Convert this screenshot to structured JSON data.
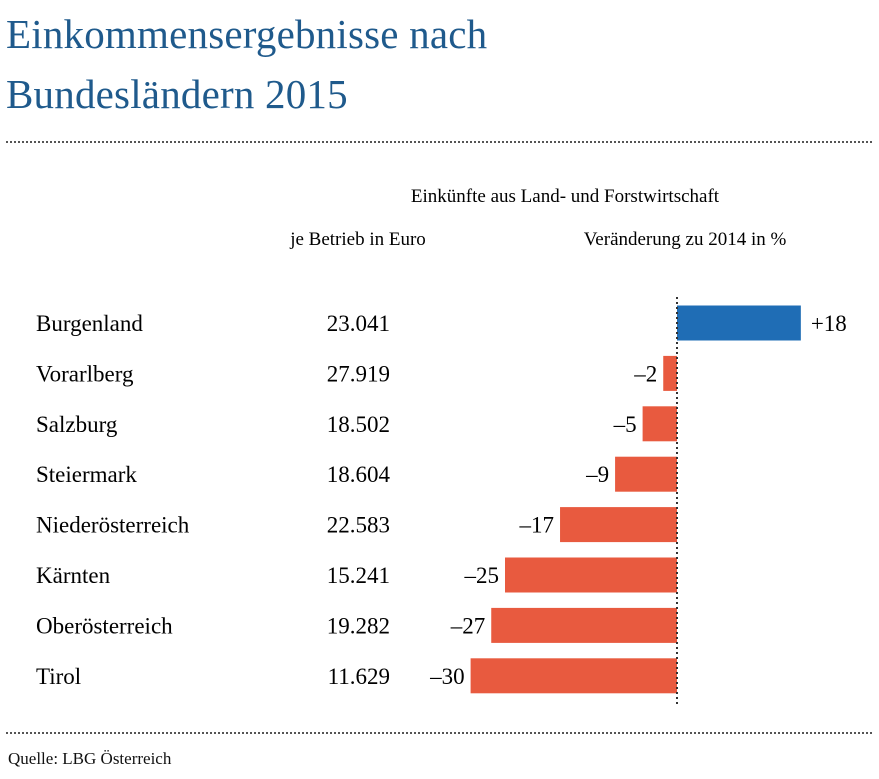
{
  "title": {
    "line1": "Einkommensergebnisse nach",
    "line2": "Bundesländern 2015"
  },
  "source": "Quelle: LBG Österreich",
  "colors": {
    "title": "#1f5a8c",
    "positive": "#1f6db5",
    "negative": "#e85a3f"
  },
  "chart_data": {
    "type": "bar",
    "header": "Einkünfte aus Land- und Forstwirtschaft",
    "columns": {
      "value": "je Betrieb in Euro",
      "change": "Veränderung zu 2014 in %"
    },
    "categories": [
      "Burgenland",
      "Vorarlberg",
      "Salzburg",
      "Steiermark",
      "Niederösterreich",
      "Kärnten",
      "Oberösterreich",
      "Tirol"
    ],
    "income_labels": [
      "23.041",
      "27.919",
      "18.502",
      "18.604",
      "22.583",
      "15.241",
      "19.282",
      "11.629"
    ],
    "change_values": [
      18,
      -2,
      -5,
      -9,
      -17,
      -25,
      -27,
      -30
    ],
    "change_labels": [
      "+18",
      "–2",
      "–5",
      "–9",
      "–17",
      "–25",
      "–27",
      "–30"
    ],
    "xlim": [
      -30,
      18
    ]
  }
}
